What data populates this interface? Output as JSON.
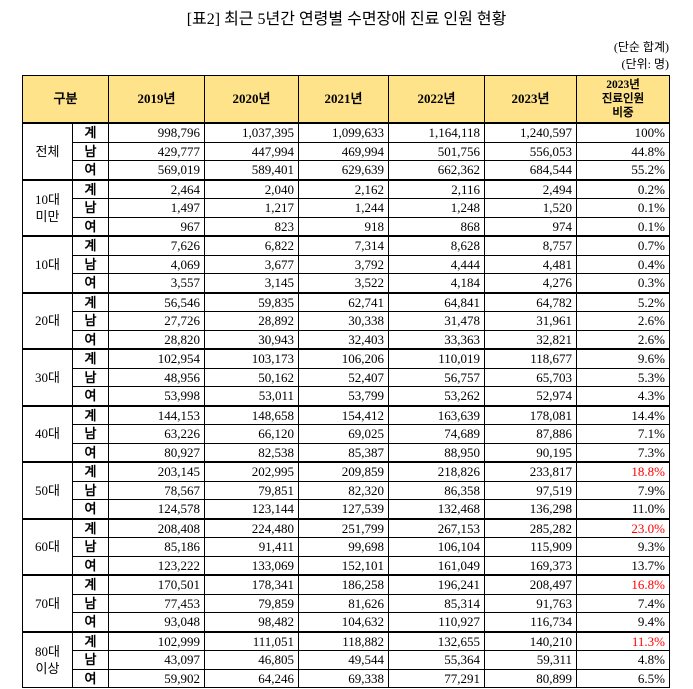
{
  "title": "[표2] 최근 5년간 연령별 수면장애 진료 인원 현황",
  "notes": [
    "(단순 합계)",
    "(단위: 명)"
  ],
  "table": {
    "header": [
      "구분",
      "2019년",
      "2020년",
      "2021년",
      "2022년",
      "2023년",
      "2023년\n진료인원\n비중"
    ],
    "header_color": "#ffe38a",
    "groups": [
      {
        "label": "전체",
        "rows": [
          {
            "label": "계",
            "values": [
              "998,796",
              "1,037,395",
              "1,099,633",
              "1,164,118",
              "1,240,597"
            ],
            "share": "100%"
          },
          {
            "label": "남",
            "values": [
              "429,777",
              "447,994",
              "469,994",
              "501,756",
              "556,053"
            ],
            "share": "44.8%"
          },
          {
            "label": "여",
            "values": [
              "569,019",
              "589,401",
              "629,639",
              "662,362",
              "684,544"
            ],
            "share": "55.2%"
          }
        ]
      },
      {
        "label": "10대\n미만",
        "rows": [
          {
            "label": "계",
            "values": [
              "2,464",
              "2,040",
              "2,162",
              "2,116",
              "2,494"
            ],
            "share": "0.2%"
          },
          {
            "label": "남",
            "values": [
              "1,497",
              "1,217",
              "1,244",
              "1,248",
              "1,520"
            ],
            "share": "0.1%"
          },
          {
            "label": "여",
            "values": [
              "967",
              "823",
              "918",
              "868",
              "974"
            ],
            "share": "0.1%"
          }
        ]
      },
      {
        "label": "10대",
        "rows": [
          {
            "label": "계",
            "values": [
              "7,626",
              "6,822",
              "7,314",
              "8,628",
              "8,757"
            ],
            "share": "0.7%"
          },
          {
            "label": "남",
            "values": [
              "4,069",
              "3,677",
              "3,792",
              "4,444",
              "4,481"
            ],
            "share": "0.4%"
          },
          {
            "label": "여",
            "values": [
              "3,557",
              "3,145",
              "3,522",
              "4,184",
              "4,276"
            ],
            "share": "0.3%"
          }
        ]
      },
      {
        "label": "20대",
        "rows": [
          {
            "label": "계",
            "values": [
              "56,546",
              "59,835",
              "62,741",
              "64,841",
              "64,782"
            ],
            "share": "5.2%"
          },
          {
            "label": "남",
            "values": [
              "27,726",
              "28,892",
              "30,338",
              "31,478",
              "31,961"
            ],
            "share": "2.6%"
          },
          {
            "label": "여",
            "values": [
              "28,820",
              "30,943",
              "32,403",
              "33,363",
              "32,821"
            ],
            "share": "2.6%"
          }
        ]
      },
      {
        "label": "30대",
        "rows": [
          {
            "label": "계",
            "values": [
              "102,954",
              "103,173",
              "106,206",
              "110,019",
              "118,677"
            ],
            "share": "9.6%"
          },
          {
            "label": "남",
            "values": [
              "48,956",
              "50,162",
              "52,407",
              "56,757",
              "65,703"
            ],
            "share": "5.3%"
          },
          {
            "label": "여",
            "values": [
              "53,998",
              "53,011",
              "53,799",
              "53,262",
              "52,974"
            ],
            "share": "4.3%"
          }
        ]
      },
      {
        "label": "40대",
        "rows": [
          {
            "label": "계",
            "values": [
              "144,153",
              "148,658",
              "154,412",
              "163,639",
              "178,081"
            ],
            "share": "14.4%"
          },
          {
            "label": "남",
            "values": [
              "63,226",
              "66,120",
              "69,025",
              "74,689",
              "87,886"
            ],
            "share": "7.1%"
          },
          {
            "label": "여",
            "values": [
              "80,927",
              "82,538",
              "85,387",
              "88,950",
              "90,195"
            ],
            "share": "7.3%"
          }
        ]
      },
      {
        "label": "50대",
        "rows": [
          {
            "label": "계",
            "values": [
              "203,145",
              "202,995",
              "209,859",
              "218,826",
              "233,817"
            ],
            "share": "18.8%",
            "share_color": "#ff0000"
          },
          {
            "label": "남",
            "values": [
              "78,567",
              "79,851",
              "82,320",
              "86,358",
              "97,519"
            ],
            "share": "7.9%"
          },
          {
            "label": "여",
            "values": [
              "124,578",
              "123,144",
              "127,539",
              "132,468",
              "136,298"
            ],
            "share": "11.0%"
          }
        ]
      },
      {
        "label": "60대",
        "rows": [
          {
            "label": "계",
            "values": [
              "208,408",
              "224,480",
              "251,799",
              "267,153",
              "285,282"
            ],
            "share": "23.0%",
            "share_color": "#ff0000"
          },
          {
            "label": "남",
            "values": [
              "85,186",
              "91,411",
              "99,698",
              "106,104",
              "115,909"
            ],
            "share": "9.3%"
          },
          {
            "label": "여",
            "values": [
              "123,222",
              "133,069",
              "152,101",
              "161,049",
              "169,373"
            ],
            "share": "13.7%"
          }
        ]
      },
      {
        "label": "70대",
        "rows": [
          {
            "label": "계",
            "values": [
              "170,501",
              "178,341",
              "186,258",
              "196,241",
              "208,497"
            ],
            "share": "16.8%",
            "share_color": "#ff0000"
          },
          {
            "label": "남",
            "values": [
              "77,453",
              "79,859",
              "81,626",
              "85,314",
              "91,763"
            ],
            "share": "7.4%"
          },
          {
            "label": "여",
            "values": [
              "93,048",
              "98,482",
              "104,632",
              "110,927",
              "116,734"
            ],
            "share": "9.4%"
          }
        ]
      },
      {
        "label": "80대\n이상",
        "rows": [
          {
            "label": "계",
            "values": [
              "102,999",
              "111,051",
              "118,882",
              "132,655",
              "140,210"
            ],
            "share": "11.3%",
            "share_color": "#ff0000"
          },
          {
            "label": "남",
            "values": [
              "43,097",
              "46,805",
              "49,544",
              "55,364",
              "59,311"
            ],
            "share": "4.8%"
          },
          {
            "label": "여",
            "values": [
              "59,902",
              "64,246",
              "69,338",
              "77,291",
              "80,899"
            ],
            "share": "6.5%"
          }
        ]
      }
    ]
  }
}
